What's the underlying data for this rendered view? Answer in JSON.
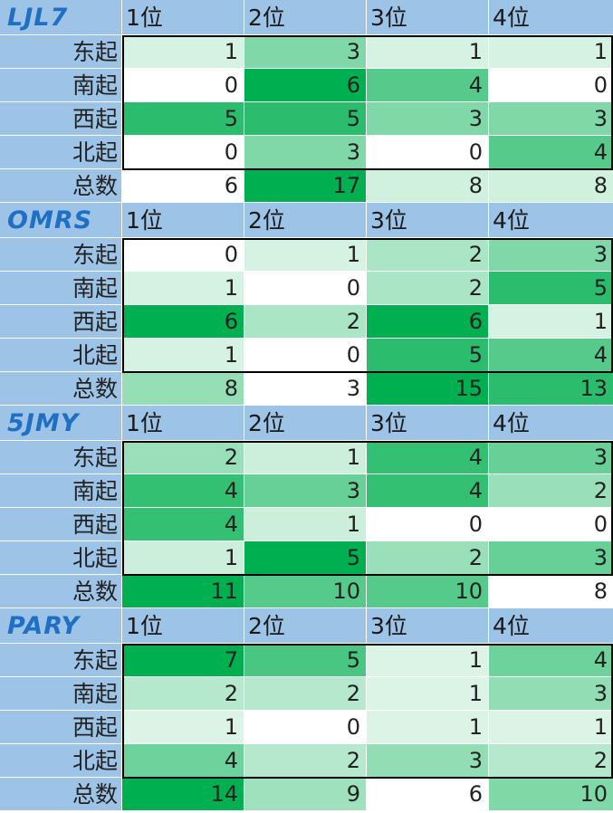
{
  "column_headers": [
    "1位",
    "2位",
    "3位",
    "4位"
  ],
  "row_labels": [
    "东起",
    "南起",
    "西起",
    "北起",
    "总数"
  ],
  "colors": {
    "header_blue": "#9dc3e6",
    "code_blue": "#1f6fc5",
    "heat_low": "#ffffff",
    "heat_high": "#00b050"
  },
  "blocks": [
    {
      "code": "LJL7",
      "rows": [
        [
          1,
          3,
          1,
          1
        ],
        [
          0,
          6,
          4,
          0
        ],
        [
          5,
          5,
          3,
          3
        ],
        [
          0,
          3,
          0,
          4
        ]
      ],
      "total": [
        6,
        17,
        8,
        8
      ]
    },
    {
      "code": "OMRS",
      "rows": [
        [
          0,
          1,
          2,
          3
        ],
        [
          1,
          0,
          2,
          5
        ],
        [
          6,
          2,
          6,
          1
        ],
        [
          1,
          0,
          5,
          4
        ]
      ],
      "total": [
        8,
        3,
        15,
        13
      ]
    },
    {
      "code": "5JMY",
      "rows": [
        [
          2,
          1,
          4,
          3
        ],
        [
          4,
          3,
          4,
          2
        ],
        [
          4,
          1,
          0,
          0
        ],
        [
          1,
          5,
          2,
          3
        ]
      ],
      "total": [
        11,
        10,
        10,
        8
      ]
    },
    {
      "code": "PARY",
      "rows": [
        [
          7,
          5,
          1,
          4
        ],
        [
          2,
          2,
          1,
          3
        ],
        [
          1,
          0,
          1,
          1
        ],
        [
          4,
          2,
          3,
          2
        ]
      ],
      "total": [
        14,
        9,
        6,
        10
      ]
    }
  ]
}
